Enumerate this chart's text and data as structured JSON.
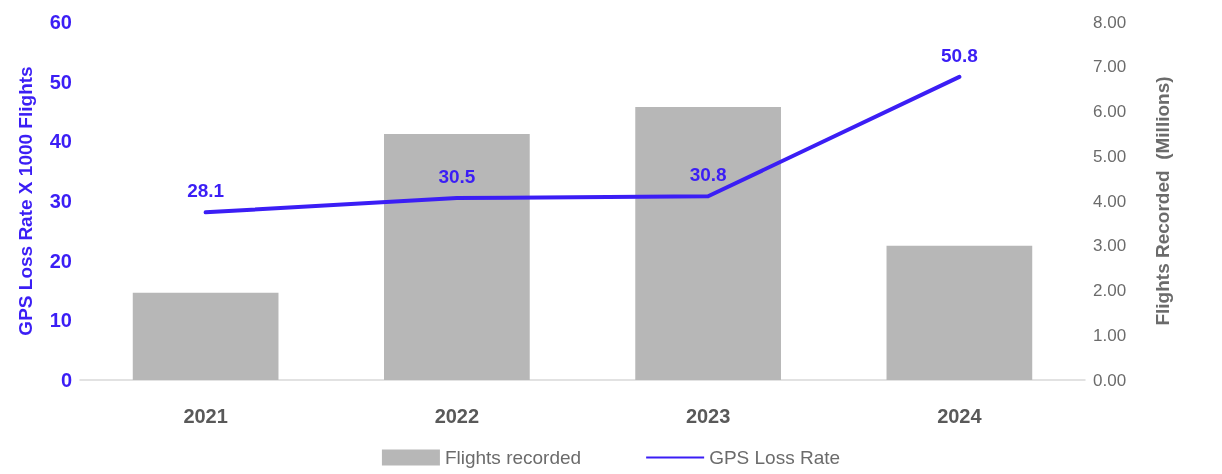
{
  "chart_data": {
    "type": "bar",
    "categories": [
      "2021",
      "2022",
      "2023",
      "2024"
    ],
    "ylabel": "GPS Loss Rate X 1000 Flights",
    "y2label": "Flights Recorded  (Millions)",
    "ylim": [
      0,
      60
    ],
    "yticks": [
      0,
      10,
      20,
      30,
      40,
      50,
      60
    ],
    "y2lim": [
      0,
      8
    ],
    "y2ticks": [
      {
        "value": 0,
        "label": "0.00"
      },
      {
        "value": 1,
        "label": "1.00"
      },
      {
        "value": 2,
        "label": "2.00"
      },
      {
        "value": 3,
        "label": "3.00"
      },
      {
        "value": 4,
        "label": "4.00"
      },
      {
        "value": 5,
        "label": "5.00"
      },
      {
        "value": 6,
        "label": "6.00"
      },
      {
        "value": 7,
        "label": "7.00"
      },
      {
        "value": 8,
        "label": "8.00"
      }
    ],
    "series": [
      {
        "name": "Flights recorded",
        "axis": "y2",
        "color": "#b7b7b7",
        "values": [
          1.95,
          5.5,
          6.1,
          3.0
        ]
      },
      {
        "name": "GPS Loss Rate",
        "type": "line",
        "color": "#3b1ef5",
        "values": [
          28.1,
          30.5,
          30.8,
          50.8
        ],
        "value_labels": [
          "28.1",
          "30.5",
          "30.8",
          "50.8"
        ]
      }
    ],
    "legend": "bottom",
    "grid": false,
    "marker": "none",
    "line_style": "solid"
  }
}
